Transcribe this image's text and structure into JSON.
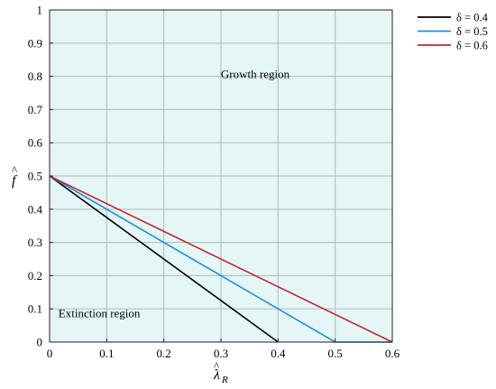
{
  "chart_data": {
    "type": "line",
    "title": "",
    "xlabel": "λ̂_R",
    "ylabel": "f̂",
    "xlim": [
      0,
      0.6
    ],
    "ylim": [
      0,
      1
    ],
    "grid": true,
    "legend_placement": "outside-top-right",
    "x_ticks": [
      "0",
      "0.1",
      "0.2",
      "0.3",
      "0.4",
      "0.5",
      "0.6"
    ],
    "y_ticks": [
      "0",
      "0.1",
      "0.2",
      "0.3",
      "0.4",
      "0.5",
      "0.6",
      "0.7",
      "0.8",
      "0.9",
      "1"
    ],
    "series": [
      {
        "name": "δ = 0.4",
        "color": "#000000",
        "x": [
          0,
          0.4
        ],
        "y": [
          0.5,
          0
        ]
      },
      {
        "name": "δ = 0.5",
        "color": "#1f8fd6",
        "x": [
          0,
          0.5,
          0.6
        ],
        "y": [
          0.5,
          0,
          0
        ]
      },
      {
        "name": "δ = 0.6",
        "color": "#c0272d",
        "x": [
          0,
          0.6
        ],
        "y": [
          0.5,
          0
        ]
      }
    ],
    "annotations": [
      {
        "text": "Growth region",
        "x": 0.36,
        "y": 0.795
      },
      {
        "text": "Extinction region",
        "x": 0.087,
        "y": 0.075
      }
    ],
    "plot_background": "#e4f6f6"
  }
}
